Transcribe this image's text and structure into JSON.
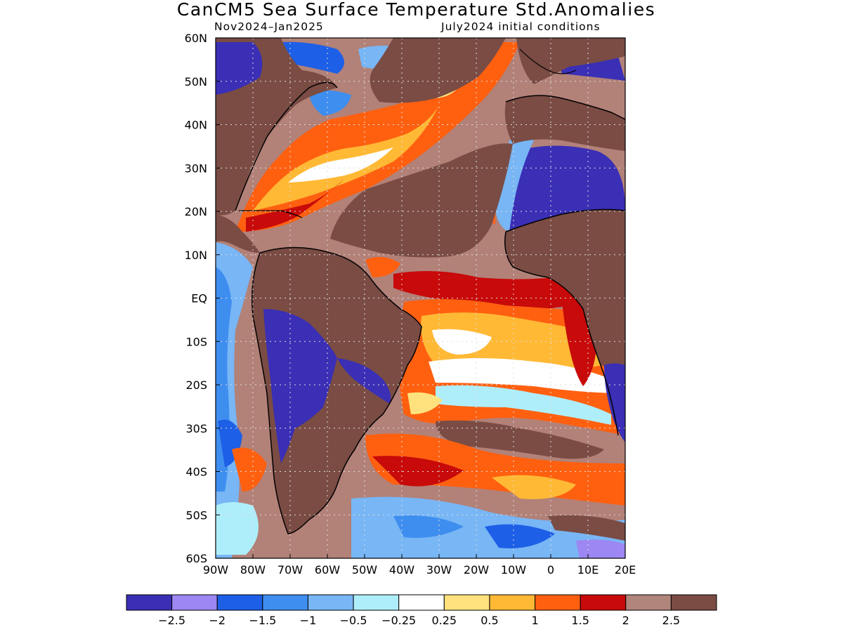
{
  "header": {
    "title": "CanCM5 Sea Surface Temperature Std.Anomalies",
    "period": "Nov2024–Jan2025",
    "initial_conditions": "July2024 initial conditions"
  },
  "map": {
    "lat_labels": [
      "60N",
      "50N",
      "40N",
      "30N",
      "20N",
      "10N",
      "EQ",
      "10S",
      "20S",
      "30S",
      "40S",
      "50S",
      "60S"
    ],
    "lon_labels": [
      "90W",
      "80W",
      "70W",
      "60W",
      "50W",
      "40W",
      "30W",
      "20W",
      "10W",
      "0",
      "10E",
      "20E"
    ],
    "land_color": "#7a4c44",
    "ocean_background": "#b28178"
  },
  "colorbar": {
    "colors": [
      "#3a2fb5",
      "#9d87f2",
      "#1d5fe6",
      "#3e8ef0",
      "#78b6f5",
      "#aeeefa",
      "#ffffff",
      "#ffe27d",
      "#ffb935",
      "#ff6010",
      "#c80a0a",
      "#b0857c",
      "#7a4c44"
    ],
    "labels": [
      "−2.5",
      "−2",
      "−1.5",
      "−1",
      "−0.5",
      "−0.25",
      "0.25",
      "0.5",
      "1",
      "1.5",
      "2",
      "2.5"
    ]
  }
}
